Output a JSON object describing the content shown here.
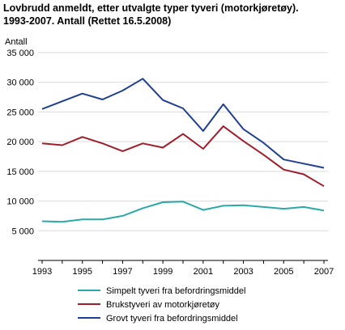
{
  "chart_data": {
    "type": "line",
    "title_line1": "Lovbrudd anmeldt, etter utvalgte typer tyveri (motorkjøretøy).",
    "title_line2": "1993-2007. Antall (Rettet 16.5.2008)",
    "ylabel": "Antall",
    "ylim": [
      0,
      35000
    ],
    "yticks": [
      5000,
      10000,
      15000,
      20000,
      25000,
      30000,
      35000
    ],
    "ytick_labels": [
      "5 000",
      "10 000",
      "15 000",
      "20 000",
      "25 000",
      "30 000",
      "35 000"
    ],
    "x": [
      1993,
      1994,
      1995,
      1996,
      1997,
      1998,
      1999,
      2000,
      2001,
      2002,
      2003,
      2004,
      2005,
      2006,
      2007
    ],
    "xtick_labels": [
      "1993",
      "1995",
      "1997",
      "1999",
      "2001",
      "2003",
      "2005",
      "2007"
    ],
    "grid": true,
    "legend_position": "bottom",
    "series": [
      {
        "name": "Simpelt tyveri fra befordringsmiddel",
        "color": "#2ba8a8",
        "values": [
          6600,
          6500,
          6900,
          6900,
          7500,
          8800,
          9800,
          9900,
          8500,
          9200,
          9300,
          9000,
          8700,
          9000,
          8400
        ]
      },
      {
        "name": "Brukstyveri av motorkjøretøy",
        "color": "#a01e2a",
        "values": [
          19700,
          19400,
          20800,
          19700,
          18400,
          19700,
          19000,
          21300,
          18800,
          22600,
          20100,
          17800,
          15300,
          14500,
          12500
        ]
      },
      {
        "name": "Grovt tyveri fra befordringsmiddel",
        "color": "#1f3f94",
        "values": [
          25500,
          26800,
          28100,
          27100,
          28600,
          30600,
          27000,
          25600,
          21800,
          26300,
          22100,
          19800,
          17000,
          16300,
          15600
        ]
      }
    ]
  }
}
